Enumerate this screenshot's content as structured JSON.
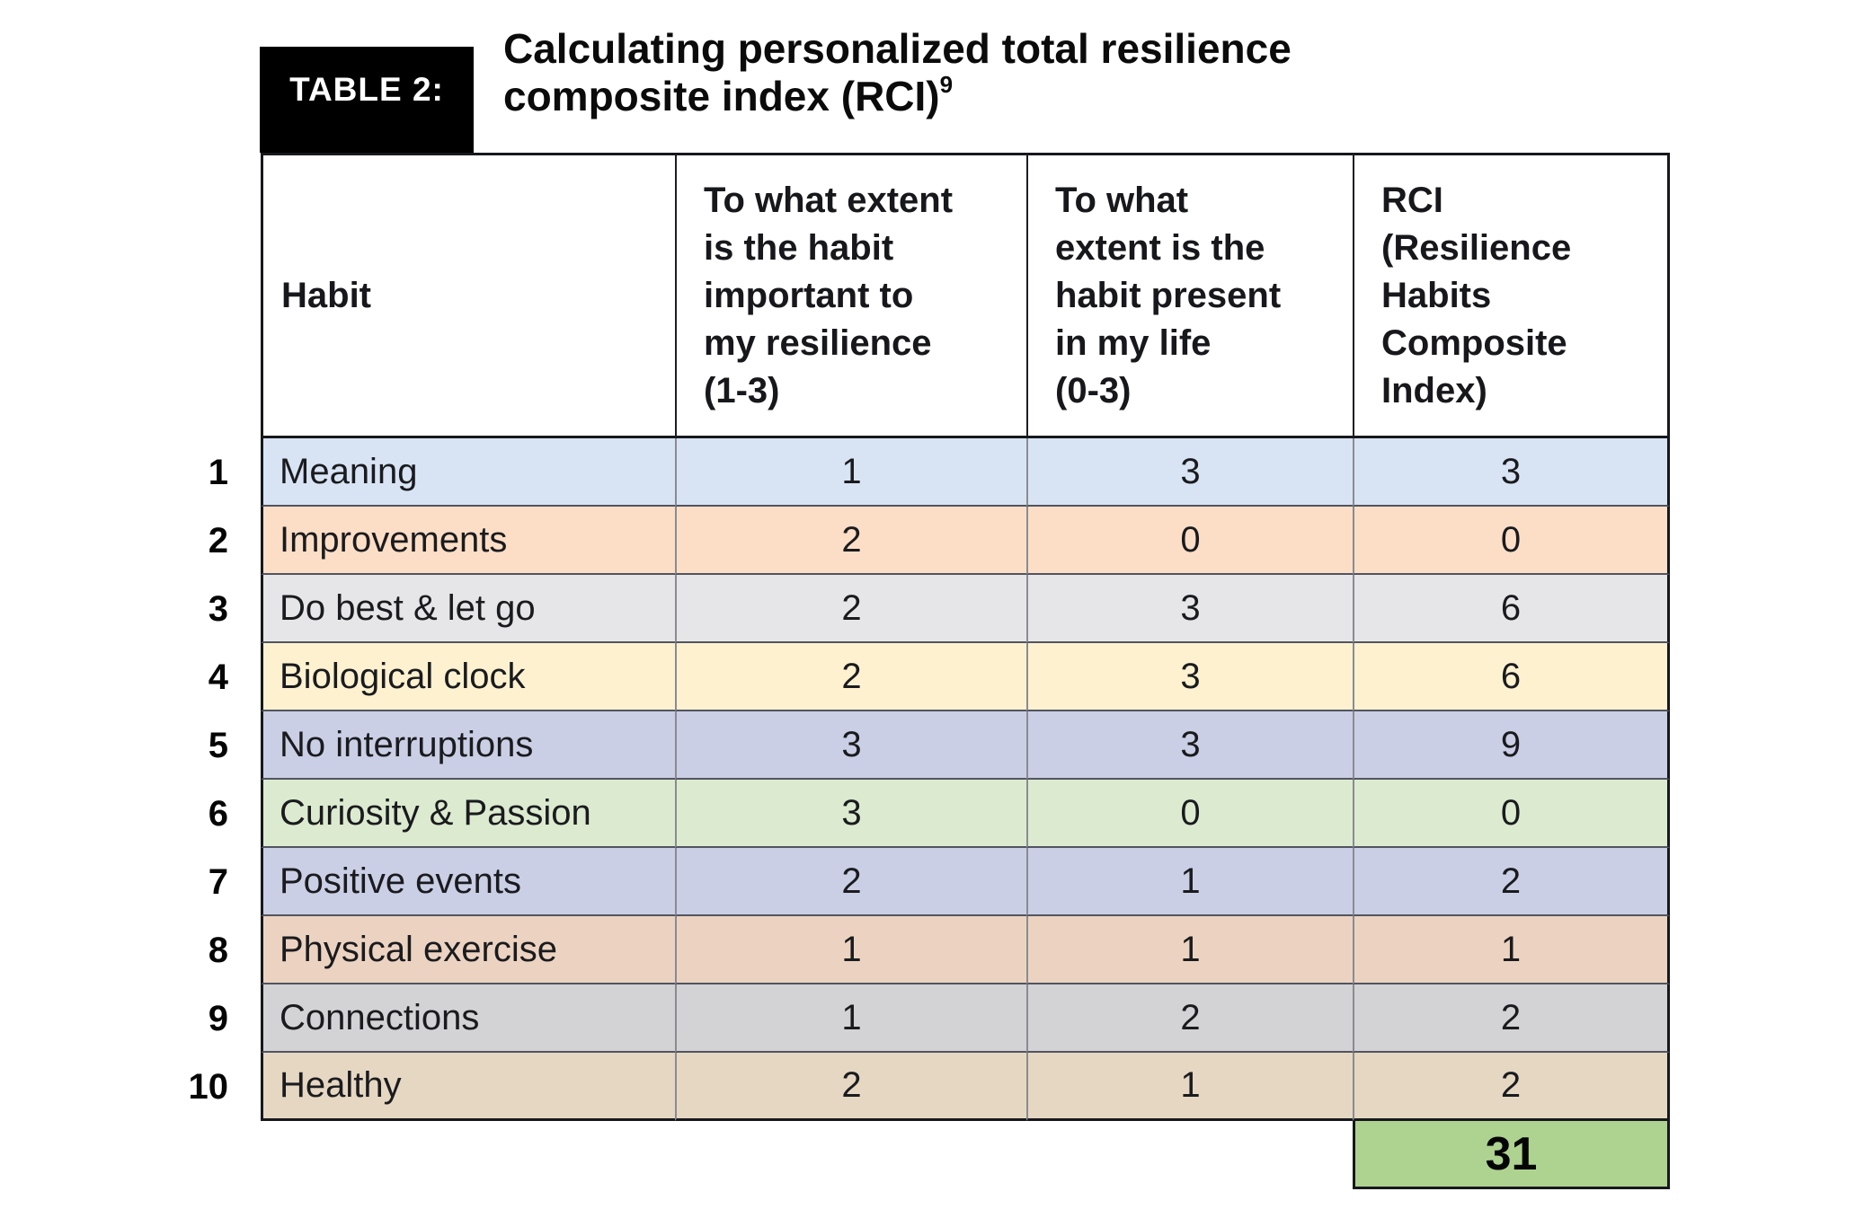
{
  "header": {
    "label": "TABLE 2:",
    "title_line1": "Calculating personalized total resilience",
    "title_line2": "composite index (RCI)",
    "title_superscript": "9"
  },
  "table": {
    "columns": [
      "Habit",
      "To what extent\nis the habit\nimportant to\nmy resilience\n(1-3)",
      "To what\nextent is the\nhabit present\nin my life\n(0-3)",
      "RCI\n(Resilience\nHabits\nComposite\nIndex)"
    ],
    "rows": [
      {
        "num": "1",
        "habit": "Meaning",
        "importance": "1",
        "presence": "3",
        "rci": "3",
        "color": "#d8e4f3"
      },
      {
        "num": "2",
        "habit": "Improvements",
        "importance": "2",
        "presence": "0",
        "rci": "0",
        "color": "#fcdec7"
      },
      {
        "num": "3",
        "habit": "Do best & let go",
        "importance": "2",
        "presence": "3",
        "rci": "6",
        "color": "#e6e6e8"
      },
      {
        "num": "4",
        "habit": "Biological clock",
        "importance": "2",
        "presence": "3",
        "rci": "6",
        "color": "#fdf1d0"
      },
      {
        "num": "5",
        "habit": "No interruptions",
        "importance": "3",
        "presence": "3",
        "rci": "9",
        "color": "#cacfe5"
      },
      {
        "num": "6",
        "habit": "Curiosity & Passion",
        "importance": "3",
        "presence": "0",
        "rci": "0",
        "color": "#dcead0"
      },
      {
        "num": "7",
        "habit": "Positive events",
        "importance": "2",
        "presence": "1",
        "rci": "2",
        "color": "#cacfe5"
      },
      {
        "num": "8",
        "habit": "Physical exercise",
        "importance": "1",
        "presence": "1",
        "rci": "1",
        "color": "#ecd3c1"
      },
      {
        "num": "9",
        "habit": "Connections",
        "importance": "1",
        "presence": "2",
        "rci": "2",
        "color": "#d3d2d5"
      },
      {
        "num": "10",
        "habit": "Healthy",
        "importance": "2",
        "presence": "1",
        "rci": "2",
        "color": "#e5d7c2"
      }
    ],
    "total": {
      "value": "31",
      "color": "#aed290"
    }
  }
}
